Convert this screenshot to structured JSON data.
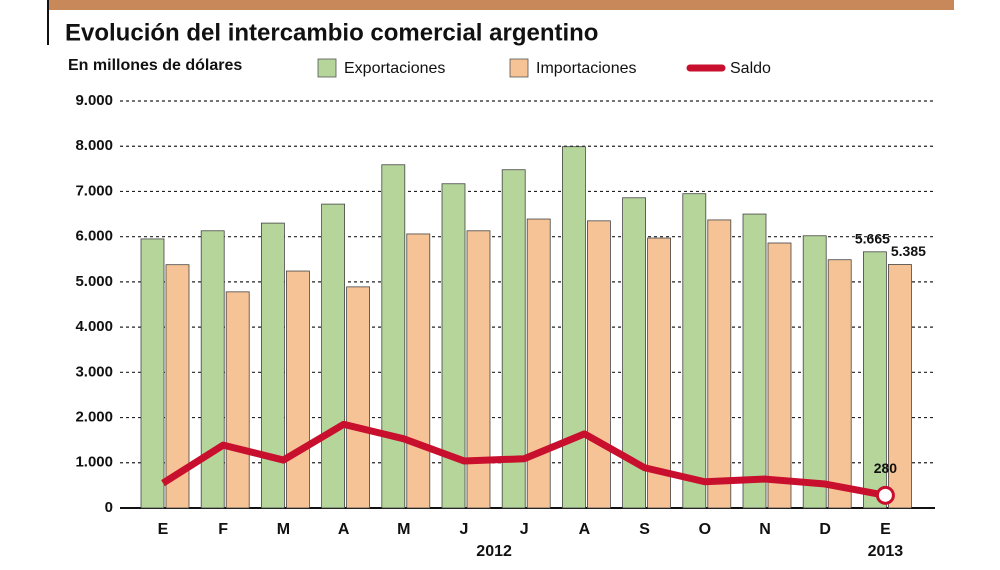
{
  "chart_data": {
    "type": "bar",
    "title": "Evolución del intercambio comercial argentino",
    "subtitle": "En millones de dólares",
    "categories": [
      "E",
      "F",
      "M",
      "A",
      "M",
      "J",
      "J",
      "A",
      "S",
      "O",
      "N",
      "D",
      "E"
    ],
    "years": [
      "2012",
      "2013"
    ],
    "series": [
      {
        "name": "Exportaciones",
        "color": "#b5d59b",
        "values": [
          5950,
          6130,
          6300,
          6720,
          7590,
          7170,
          7480,
          7990,
          6860,
          6950,
          6500,
          6020,
          5665
        ],
        "value_labels": [
          null,
          null,
          null,
          null,
          null,
          null,
          null,
          null,
          null,
          null,
          null,
          null,
          "5.665"
        ]
      },
      {
        "name": "Importaciones",
        "color": "#f6c396",
        "values": [
          5380,
          4780,
          5240,
          4890,
          6060,
          6130,
          6390,
          6350,
          5970,
          6370,
          5860,
          5490,
          5385
        ],
        "value_labels": [
          null,
          null,
          null,
          null,
          null,
          null,
          null,
          null,
          null,
          null,
          null,
          null,
          "5.385"
        ]
      },
      {
        "name": "Saldo",
        "type": "line",
        "color": "#c8102e",
        "values": [
          550,
          1390,
          1060,
          1850,
          1530,
          1040,
          1090,
          1640,
          890,
          580,
          640,
          530,
          280
        ],
        "value_labels": [
          null,
          null,
          null,
          null,
          null,
          null,
          null,
          null,
          null,
          null,
          null,
          null,
          "280"
        ]
      }
    ],
    "ylim": [
      0,
      9000
    ],
    "yticks": [
      0,
      {
        "value": 1000,
        "label": "1.000"
      },
      {
        "value": 2000,
        "label": "2.000"
      },
      {
        "value": 3000,
        "label": "3.000"
      },
      {
        "value": 4000,
        "label": "4.000"
      },
      {
        "value": 5000,
        "label": "5.000"
      },
      {
        "value": 6000,
        "label": "6.000"
      },
      {
        "value": 7000,
        "label": "7.000"
      },
      {
        "value": 8000,
        "label": "8.000"
      },
      {
        "value": 9000,
        "label": "9.000"
      }
    ],
    "grid": true
  }
}
